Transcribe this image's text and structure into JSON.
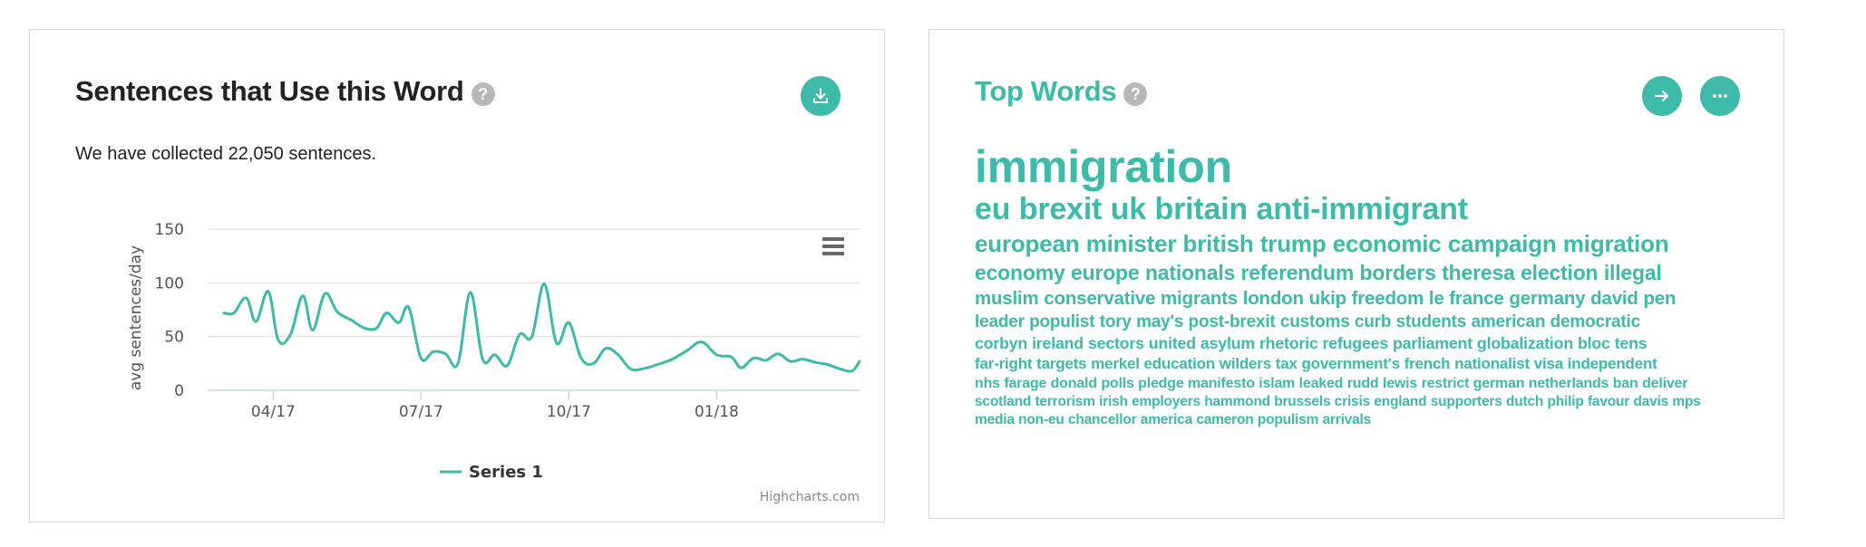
{
  "sentences_card": {
    "title": "Sentences that Use this Word",
    "help": "?",
    "summary": "We have collected 22,050 sentences.",
    "credits": "Highcharts.com"
  },
  "chart_data": {
    "type": "line",
    "title": "",
    "xlabel": "",
    "ylabel": "avg sentences/day",
    "ylim": [
      0,
      150
    ],
    "yticks": [
      "0",
      "50",
      "100",
      "150"
    ],
    "xticks": [
      {
        "label": "04/17",
        "x": 1
      },
      {
        "label": "07/17",
        "x": 4
      },
      {
        "label": "10/17",
        "x": 7
      },
      {
        "label": "01/18",
        "x": 10
      }
    ],
    "xlim": [
      0,
      12
    ],
    "grid": true,
    "legend_position": "bottom",
    "series": [
      {
        "name": "Series 1",
        "color": "#3dbba8",
        "points": [
          [
            0.0,
            72
          ],
          [
            0.2,
            72
          ],
          [
            0.45,
            86
          ],
          [
            0.65,
            64
          ],
          [
            0.9,
            92
          ],
          [
            1.1,
            47
          ],
          [
            1.35,
            52
          ],
          [
            1.6,
            88
          ],
          [
            1.8,
            56
          ],
          [
            2.05,
            90
          ],
          [
            2.3,
            73
          ],
          [
            2.6,
            65
          ],
          [
            2.85,
            58
          ],
          [
            3.1,
            58
          ],
          [
            3.3,
            72
          ],
          [
            3.55,
            63
          ],
          [
            3.75,
            77
          ],
          [
            4.0,
            30
          ],
          [
            4.25,
            36
          ],
          [
            4.5,
            34
          ],
          [
            4.75,
            25
          ],
          [
            5.0,
            91
          ],
          [
            5.25,
            29
          ],
          [
            5.5,
            33
          ],
          [
            5.75,
            23
          ],
          [
            6.0,
            52
          ],
          [
            6.25,
            50
          ],
          [
            6.5,
            99
          ],
          [
            6.75,
            44
          ],
          [
            7.0,
            63
          ],
          [
            7.25,
            30
          ],
          [
            7.5,
            25
          ],
          [
            7.75,
            39
          ],
          [
            8.0,
            33
          ],
          [
            8.25,
            20
          ],
          [
            8.5,
            20
          ],
          [
            8.8,
            24
          ],
          [
            9.1,
            29
          ],
          [
            9.4,
            37
          ],
          [
            9.7,
            45
          ],
          [
            10.0,
            33
          ],
          [
            10.3,
            31
          ],
          [
            10.5,
            21
          ],
          [
            10.75,
            30
          ],
          [
            11.0,
            28
          ],
          [
            11.25,
            34
          ],
          [
            11.5,
            27
          ],
          [
            11.75,
            29
          ],
          [
            12.0,
            26
          ],
          [
            12.25,
            24
          ],
          [
            12.5,
            20
          ],
          [
            12.75,
            18
          ],
          [
            12.9,
            27
          ]
        ]
      }
    ]
  },
  "top_words_card": {
    "title": "Top Words",
    "help": "?",
    "lines": [
      {
        "size": 50,
        "words": [
          "immigration"
        ]
      },
      {
        "size": 34,
        "words": [
          "eu",
          "brexit",
          "uk",
          "britain",
          "anti-immigrant"
        ]
      },
      {
        "size": 26,
        "words": [
          "european",
          "minister",
          "british",
          "trump",
          "economic",
          "campaign",
          "migration"
        ]
      },
      {
        "size": 23,
        "words": [
          "economy",
          "europe",
          "nationals",
          "referendum",
          "borders",
          "theresa",
          "election",
          "illegal"
        ]
      },
      {
        "size": 20.5,
        "words": [
          "muslim",
          "conservative",
          "migrants",
          "london",
          "ukip",
          "freedom",
          "le",
          "france",
          "germany",
          "david",
          "pen"
        ]
      },
      {
        "size": 19,
        "words": [
          "leader",
          "populist",
          "tory",
          "may's",
          "post-brexit",
          "customs",
          "curb",
          "students",
          "american",
          "democratic"
        ]
      },
      {
        "size": 17.8,
        "words": [
          "corbyn",
          "ireland",
          "sectors",
          "united",
          "asylum",
          "rhetoric",
          "refugees",
          "parliament",
          "globalization",
          "bloc",
          "tens"
        ]
      },
      {
        "size": 17,
        "words": [
          "far-right",
          "targets",
          "merkel",
          "education",
          "wilders",
          "tax",
          "government's",
          "french",
          "nationalist",
          "visa",
          "independent"
        ]
      },
      {
        "size": 16,
        "words": [
          "nhs",
          "farage",
          "donald",
          "polls",
          "pledge",
          "manifesto",
          "islam",
          "leaked",
          "rudd",
          "lewis",
          "restrict",
          "german",
          "netherlands",
          "ban",
          "deliver"
        ]
      },
      {
        "size": 15.5,
        "words": [
          "scotland",
          "terrorism",
          "irish",
          "employers",
          "hammond",
          "brussels",
          "crisis",
          "england",
          "supporters",
          "dutch",
          "philip",
          "favour",
          "davis",
          "mps"
        ]
      },
      {
        "size": 15.5,
        "words": [
          "media",
          "non-eu",
          "chancellor",
          "america",
          "cameron",
          "populism",
          "arrivals"
        ]
      }
    ]
  },
  "icons": {
    "download": "download-icon",
    "arrow": "arrow-right-icon",
    "more": "more-dots-icon",
    "menu": "hamburger-menu-icon"
  },
  "colors": {
    "accent": "#3dbba8",
    "help_icon": "#b8b8b8",
    "grid": "#e6e6e6"
  }
}
